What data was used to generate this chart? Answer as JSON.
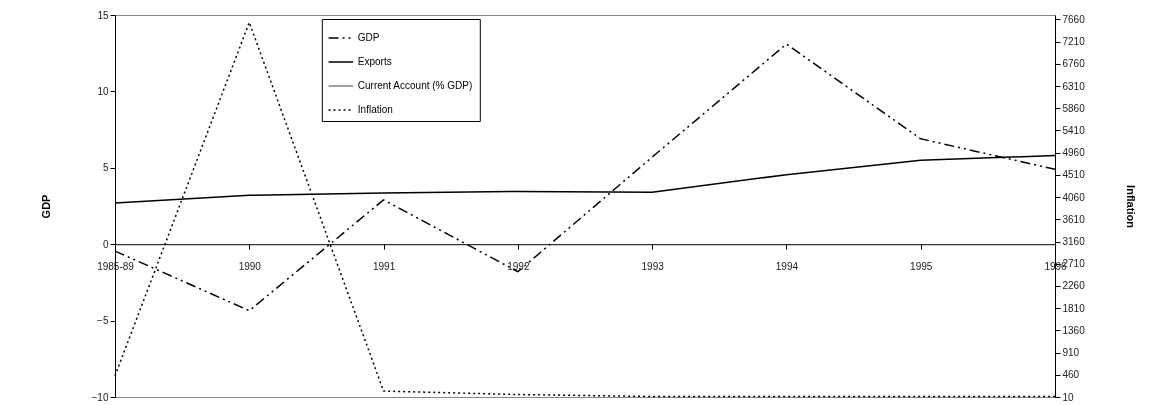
{
  "chart_data": {
    "type": "line",
    "ylabel": "GDP",
    "y2label": "Inflation",
    "categories": [
      "1985-89",
      "1990",
      "1991",
      "1992",
      "1993",
      "1994",
      "1995",
      "1996"
    ],
    "series": [
      {
        "name": "GDP",
        "color": "#000000",
        "line_style": "dashed",
        "values": [
          -0.45,
          -4.35,
          2.9,
          -1.8,
          5.7,
          13.1,
          6.9,
          4.9
        ]
      },
      {
        "name": "Exports",
        "color": "#000000",
        "line_style": "solid",
        "values": [
          2.7,
          3.2,
          3.35,
          3.45,
          3.4,
          4.55,
          5.5,
          5.8
        ]
      },
      {
        "name": "Current Account (% GDP)",
        "color": "#808080",
        "line_style": "solid",
        "values": [
          null,
          null,
          null,
          null,
          null,
          null,
          null,
          null
        ]
      },
      {
        "name": "Inflation",
        "color": "#000000",
        "line_style": "dotted",
        "axis": "y2",
        "values": [
          440,
          7600,
          130,
          60,
          20,
          20,
          20,
          20
        ]
      }
    ],
    "ylim": [
      -10,
      15
    ],
    "yticks": [
      -10,
      -5,
      0,
      5,
      10,
      15
    ],
    "y2lim": [
      10,
      7750
    ],
    "y2ticks": [
      10,
      460,
      910,
      1360,
      1810,
      2260,
      2710,
      3160,
      3610,
      4060,
      4510,
      4960,
      5410,
      5860,
      6310,
      6760,
      7210,
      7660
    ],
    "legend": "top",
    "grid": false,
    "marker": "none"
  }
}
